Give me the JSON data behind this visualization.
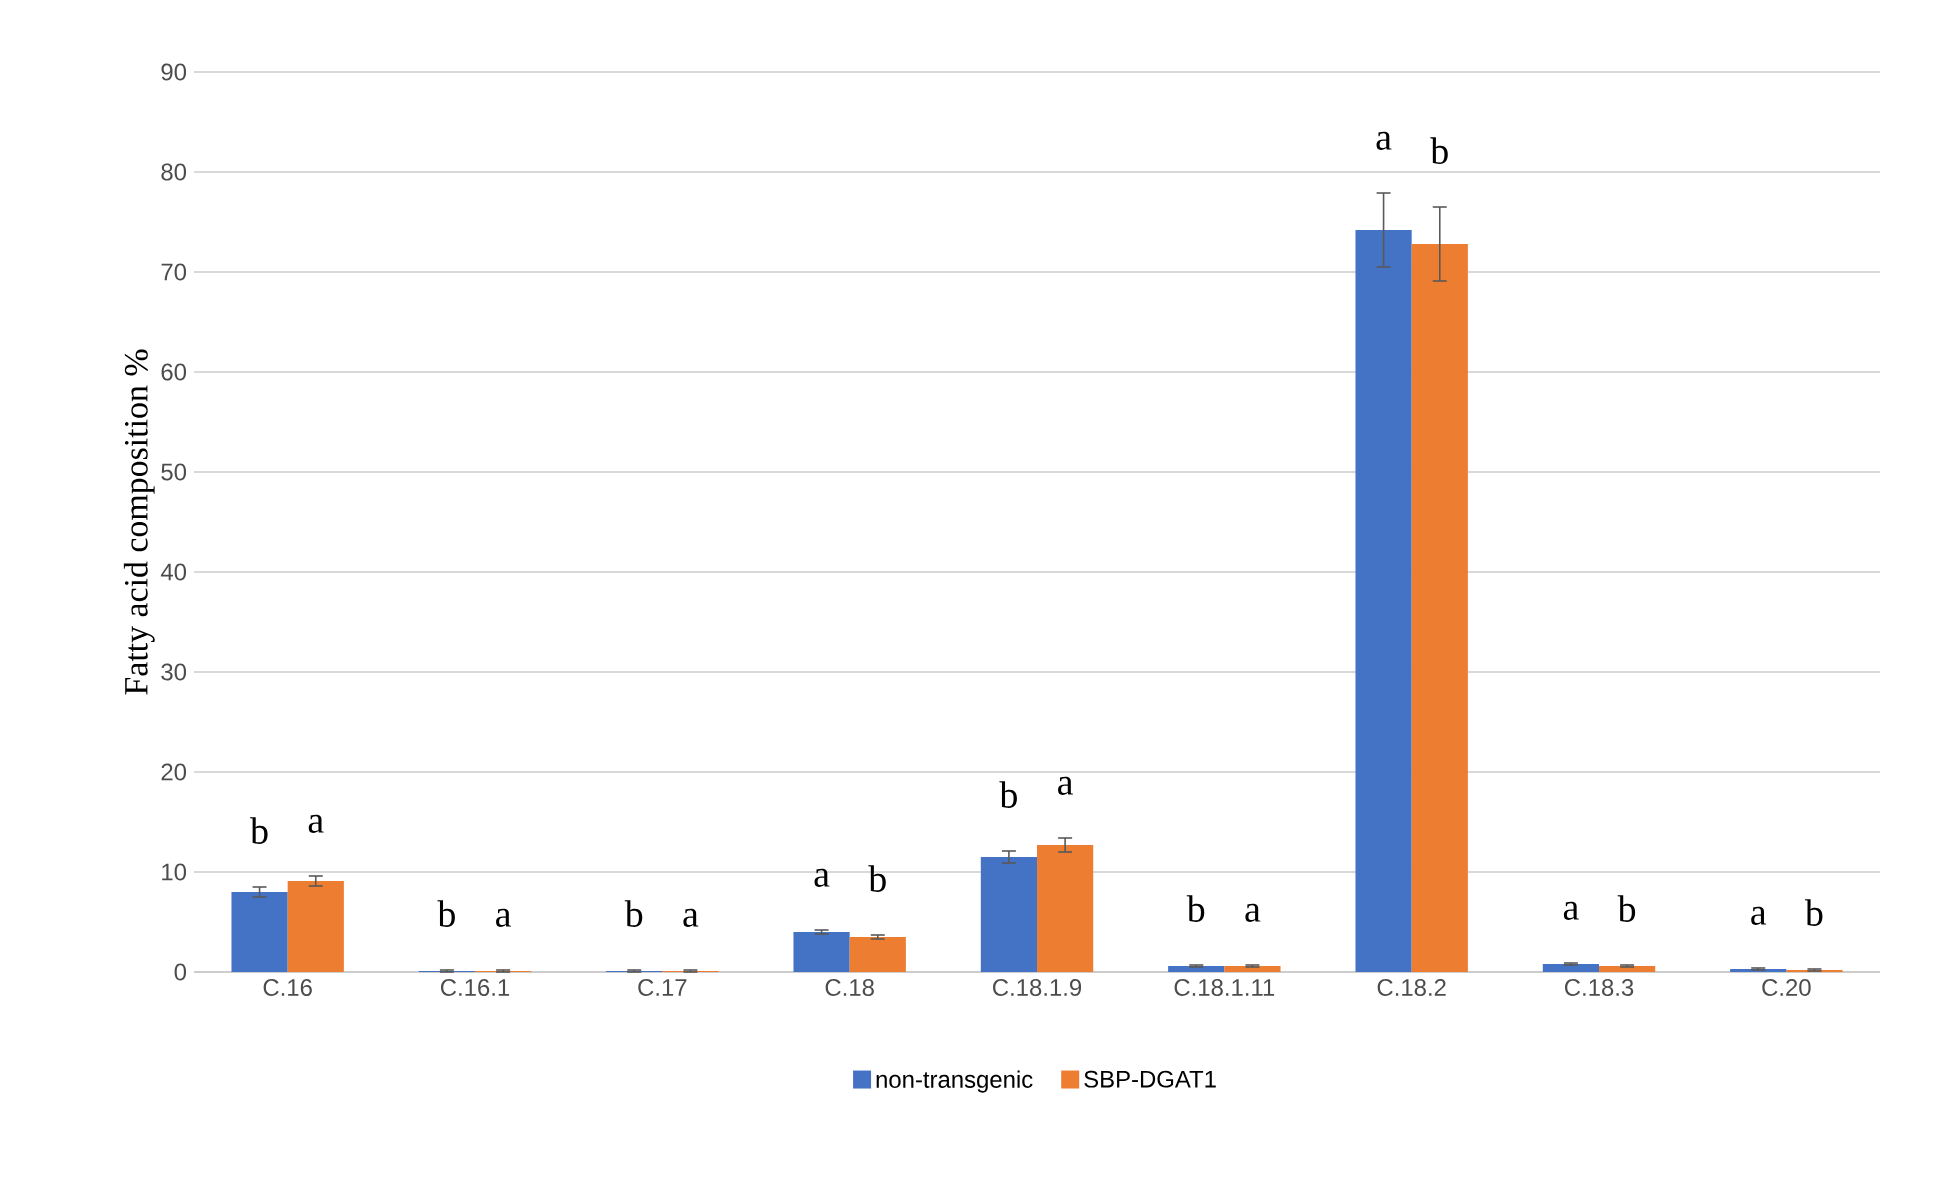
{
  "chart_data": {
    "type": "bar",
    "ylabel": "Fatty acid composition  %",
    "categories": [
      "C.16",
      "C.16.1",
      "C.17",
      "C.18",
      "C.18.1.9",
      "C.18.1.11",
      "C.18.2",
      "C.18.3",
      "C.20"
    ],
    "series": [
      {
        "name": "non-transgenic",
        "color": "#4472c4",
        "values": [
          8.0,
          0.1,
          0.1,
          4.0,
          11.5,
          0.6,
          74.2,
          0.8,
          0.3
        ],
        "errors": [
          0.5,
          0.1,
          0.1,
          0.2,
          0.6,
          0.1,
          3.7,
          0.1,
          0.1
        ],
        "value_labels": [
          "b",
          "b",
          "b",
          "a",
          "b",
          "b",
          "a",
          "a",
          "a"
        ]
      },
      {
        "name": "SBP-DGAT1",
        "color": "#ed7d31",
        "values": [
          9.1,
          0.1,
          0.1,
          3.5,
          12.7,
          0.6,
          72.8,
          0.6,
          0.2
        ],
        "errors": [
          0.5,
          0.1,
          0.1,
          0.2,
          0.7,
          0.1,
          3.7,
          0.1,
          0.1
        ],
        "value_labels": [
          "a",
          "a",
          "a",
          "b",
          "a",
          "a",
          "b",
          "b",
          "b"
        ]
      }
    ],
    "ylim": [
      0,
      90
    ],
    "yticks": [
      0,
      10,
      20,
      30,
      40,
      50,
      60,
      70,
      80,
      90
    ],
    "grid": "y",
    "legend": "bottom"
  }
}
